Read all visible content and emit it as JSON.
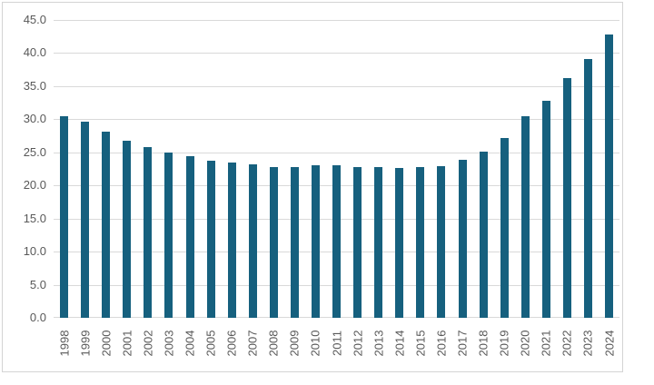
{
  "chart_data": {
    "type": "bar",
    "categories": [
      "1998",
      "1999",
      "2000",
      "2001",
      "2002",
      "2003",
      "2004",
      "2005",
      "2006",
      "2007",
      "2008",
      "2009",
      "2010",
      "2011",
      "2012",
      "2013",
      "2014",
      "2015",
      "2016",
      "2017",
      "2018",
      "2019",
      "2020",
      "2021",
      "2022",
      "2023",
      "2024"
    ],
    "values": [
      30.4,
      29.6,
      28.1,
      26.7,
      25.8,
      25.0,
      24.4,
      23.8,
      23.4,
      23.2,
      22.8,
      22.8,
      23.0,
      23.0,
      22.8,
      22.8,
      22.7,
      22.8,
      22.9,
      23.9,
      25.1,
      27.2,
      30.5,
      32.8,
      36.2,
      39.1,
      42.8
    ],
    "ylim": [
      0,
      45
    ],
    "ytick_values": [
      0,
      5,
      10,
      15,
      20,
      25,
      30,
      35,
      40,
      45
    ],
    "ytick_labels": [
      "0.0",
      "5.0",
      "10.0",
      "15.0",
      "20.0",
      "25.0",
      "30.0",
      "35.0",
      "40.0",
      "45.0"
    ],
    "grid": true,
    "legend": false,
    "xlabel": "",
    "ylabel": "",
    "colors": {
      "bar": "#16607e",
      "gridline": "#d9d9d9",
      "tick_label": "#595959",
      "frame_border": "#d4d4d4",
      "background": "#ffffff"
    }
  }
}
